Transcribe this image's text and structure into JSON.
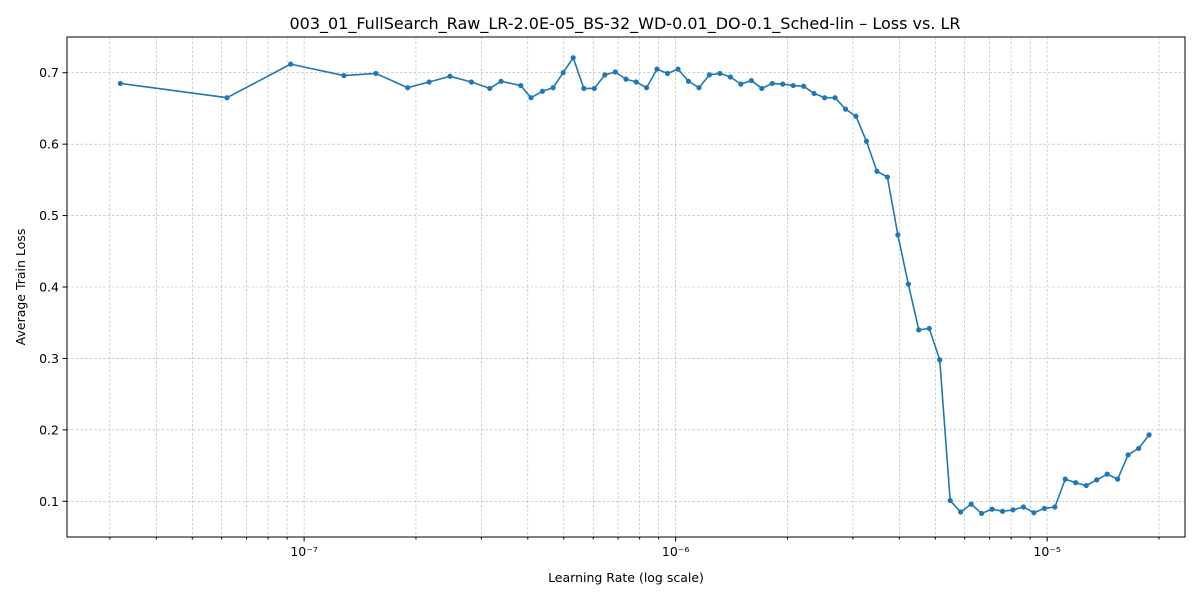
{
  "chart_data": {
    "type": "line",
    "title": "003_01_FullSearch_Raw_LR-2.0E-05_BS-32_WD-0.01_DO-0.1_Sched-lin – Loss vs. LR",
    "xlabel": "Learning Rate (log scale)",
    "ylabel": "Average Train Loss",
    "xscale": "log",
    "xlim": [
      2.3e-08,
      2.35e-05
    ],
    "ylim": [
      0.05,
      0.75
    ],
    "grid": true,
    "color": "#1f77b4",
    "x_ticks": [
      {
        "value": 1e-07,
        "label": "10⁻⁷"
      },
      {
        "value": 1e-06,
        "label": "10⁻⁶"
      },
      {
        "value": 1e-05,
        "label": "10⁻⁵"
      }
    ],
    "y_ticks": [
      {
        "value": 0.1,
        "label": "0.1"
      },
      {
        "value": 0.2,
        "label": "0.2"
      },
      {
        "value": 0.3,
        "label": "0.3"
      },
      {
        "value": 0.4,
        "label": "0.4"
      },
      {
        "value": 0.5,
        "label": "0.5"
      },
      {
        "value": 0.6,
        "label": "0.6"
      },
      {
        "value": 0.7,
        "label": "0.7"
      }
    ],
    "series": [
      {
        "x": [
          3.2e-08,
          6.2e-08,
          9.2e-08,
          1.28e-07,
          1.56e-07,
          1.9e-07,
          2.17e-07,
          2.47e-07,
          2.82e-07,
          3.16e-07,
          3.39e-07,
          3.83e-07,
          4.08e-07,
          4.38e-07,
          4.68e-07,
          4.98e-07,
          5.3e-07,
          5.66e-07,
          6.04e-07,
          6.45e-07,
          6.88e-07,
          7.35e-07,
          7.83e-07,
          8.35e-07,
          8.91e-07,
          9.51e-07,
          1.015e-06,
          1.083e-06,
          1.156e-06,
          1.233e-06,
          1.316e-06,
          1.404e-06,
          1.498e-06,
          1.599e-06,
          1.706e-06,
          1.82e-06,
          1.942e-06,
          2.072e-06,
          2.211e-06,
          2.359e-06,
          2.517e-06,
          2.686e-06,
          2.866e-06,
          3.058e-06,
          3.263e-06,
          3.482e-06,
          3.715e-06,
          3.964e-06,
          4.23e-06,
          4.513e-06,
          4.816e-06,
          5.139e-06,
          5.483e-06,
          5.851e-06,
          6.243e-06,
          6.661e-06,
          7.107e-06,
          7.584e-06,
          8.092e-06,
          8.634e-06,
          9.213e-06,
          9.83e-06,
          1.049e-05,
          1.119e-05,
          1.194e-05,
          1.274e-05,
          1.36e-05,
          1.451e-05,
          1.548e-05,
          1.652e-05,
          1.763e-05,
          1.881e-05
        ],
        "y": [
          0.685,
          0.665,
          0.712,
          0.696,
          0.699,
          0.679,
          0.687,
          0.695,
          0.687,
          0.678,
          0.688,
          0.682,
          0.665,
          0.674,
          0.679,
          0.7,
          0.721,
          0.678,
          0.678,
          0.697,
          0.701,
          0.691,
          0.687,
          0.679,
          0.705,
          0.699,
          0.705,
          0.688,
          0.679,
          0.697,
          0.699,
          0.694,
          0.684,
          0.689,
          0.678,
          0.685,
          0.684,
          0.682,
          0.681,
          0.671,
          0.665,
          0.665,
          0.649,
          0.639,
          0.604,
          0.562,
          0.554,
          0.473,
          0.404,
          0.34,
          0.342,
          0.298,
          0.101,
          0.085,
          0.096,
          0.083,
          0.089,
          0.086,
          0.088,
          0.092,
          0.084,
          0.09,
          0.092,
          0.131,
          0.126,
          0.122,
          0.13,
          0.138,
          0.131,
          0.165,
          0.174,
          0.193
        ]
      }
    ]
  }
}
